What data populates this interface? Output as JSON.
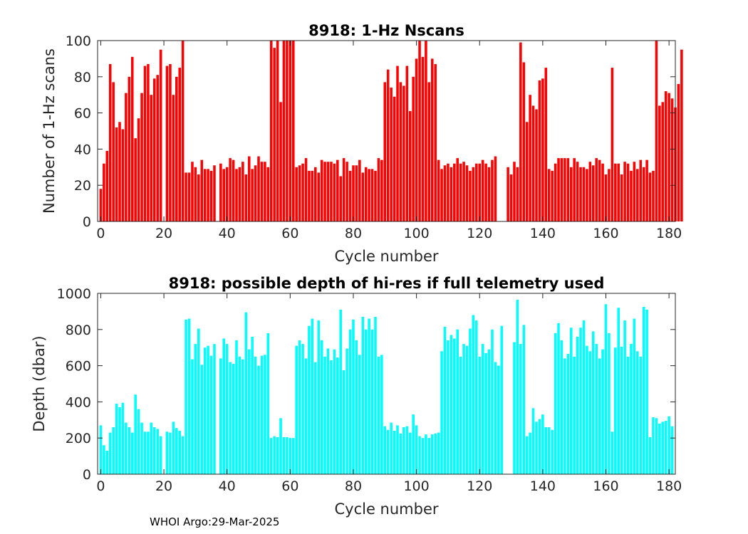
{
  "footer": "WHOI Argo:29-Mar-2025",
  "chart_data": [
    {
      "type": "bar",
      "title": "8918: 1-Hz Nscans",
      "xlabel": "Cycle number",
      "ylabel": "Number of 1-Hz scans",
      "xlim": [
        -1,
        182
      ],
      "ylim": [
        0,
        100
      ],
      "xticks": [
        0,
        20,
        40,
        60,
        80,
        100,
        120,
        140,
        160,
        180
      ],
      "yticks": [
        0,
        20,
        40,
        60,
        80,
        100
      ],
      "color": "#ff0000",
      "grid": false,
      "x_start": 0,
      "values": [
        18,
        32,
        39,
        87,
        77,
        52,
        55,
        51,
        71,
        80,
        91,
        46,
        57,
        71,
        86,
        87,
        70,
        79,
        81,
        95,
        null,
        86,
        87,
        70,
        80,
        85,
        100,
        27,
        27,
        33,
        30,
        26,
        34,
        29,
        29,
        28,
        31,
        null,
        32,
        29,
        30,
        35,
        34,
        29,
        30,
        33,
        26,
        36,
        29,
        31,
        36,
        33,
        33,
        30,
        100,
        96,
        100,
        66,
        100,
        100,
        100,
        100,
        30,
        31,
        32,
        35,
        28,
        28,
        30,
        27,
        34,
        33,
        33,
        33,
        32,
        34,
        25,
        35,
        33,
        28,
        31,
        31,
        34,
        27,
        30,
        29,
        29,
        28,
        35,
        34,
        77,
        84,
        74,
        69,
        86,
        77,
        75,
        86,
        61,
        80,
        90,
        100,
        91,
        100,
        77,
        90,
        87,
        34,
        29,
        31,
        32,
        30,
        32,
        35,
        32,
        33,
        31,
        28,
        30,
        32,
        32,
        34,
        32,
        30,
        34,
        36,
        null,
        null,
        null,
        30,
        26,
        33,
        30,
        99,
        88,
        55,
        70,
        64,
        62,
        78,
        79,
        85,
        29,
        28,
        32,
        35,
        35,
        35,
        35,
        30,
        35,
        33,
        30,
        30,
        29,
        33,
        31,
        35,
        34,
        32,
        26,
        29,
        85,
        32,
        32,
        26,
        33,
        32,
        28,
        33,
        29,
        34,
        30,
        34,
        27,
        28,
        100,
        64,
        66,
        72,
        71,
        68,
        63,
        76,
        95
      ]
    },
    {
      "type": "bar",
      "title": "8918: possible depth of hi-res if full telemetry used",
      "xlabel": "Cycle number",
      "ylabel": "Depth (dbar)",
      "xlim": [
        -1,
        182
      ],
      "ylim": [
        0,
        1000
      ],
      "xticks": [
        0,
        20,
        40,
        60,
        80,
        100,
        120,
        140,
        160,
        180
      ],
      "yticks": [
        0,
        200,
        400,
        600,
        800,
        1000
      ],
      "color": "#00ffff",
      "grid": false,
      "x_start": 0,
      "values": [
        270,
        160,
        130,
        230,
        260,
        390,
        370,
        395,
        285,
        260,
        230,
        440,
        360,
        285,
        235,
        235,
        285,
        260,
        250,
        210,
        null,
        235,
        230,
        290,
        255,
        240,
        210,
        855,
        860,
        635,
        720,
        805,
        605,
        700,
        710,
        655,
        720,
        null,
        640,
        750,
        720,
        620,
        610,
        740,
        650,
        635,
        895,
        690,
        760,
        650,
        600,
        655,
        660,
        780,
        200,
        210,
        205,
        310,
        205,
        205,
        200,
        200,
        710,
        740,
        720,
        640,
        820,
        860,
        620,
        850,
        740,
        650,
        695,
        630,
        690,
        645,
        910,
        575,
        695,
        800,
        855,
        740,
        660,
        870,
        800,
        860,
        800,
        870,
        650,
        660,
        265,
        245,
        285,
        240,
        270,
        225,
        260,
        265,
        230,
        330,
        270,
        210,
        200,
        220,
        200,
        220,
        225,
        230,
        680,
        815,
        740,
        770,
        750,
        800,
        650,
        720,
        710,
        805,
        880,
        850,
        650,
        720,
        670,
        690,
        800,
        620,
        600,
        820,
        null,
        null,
        null,
        730,
        965,
        720,
        825,
        210,
        230,
        365,
        290,
        305,
        330,
        260,
        260,
        245,
        780,
        835,
        740,
        640,
        665,
        810,
        650,
        760,
        810,
        850,
        710,
        680,
        790,
        720,
        640,
        690,
        940,
        780,
        235,
        700,
        920,
        705,
        850,
        650,
        720,
        860,
        680,
        650,
        925,
        910,
        205,
        315,
        310,
        280,
        290,
        295,
        320,
        265
      ]
    }
  ]
}
